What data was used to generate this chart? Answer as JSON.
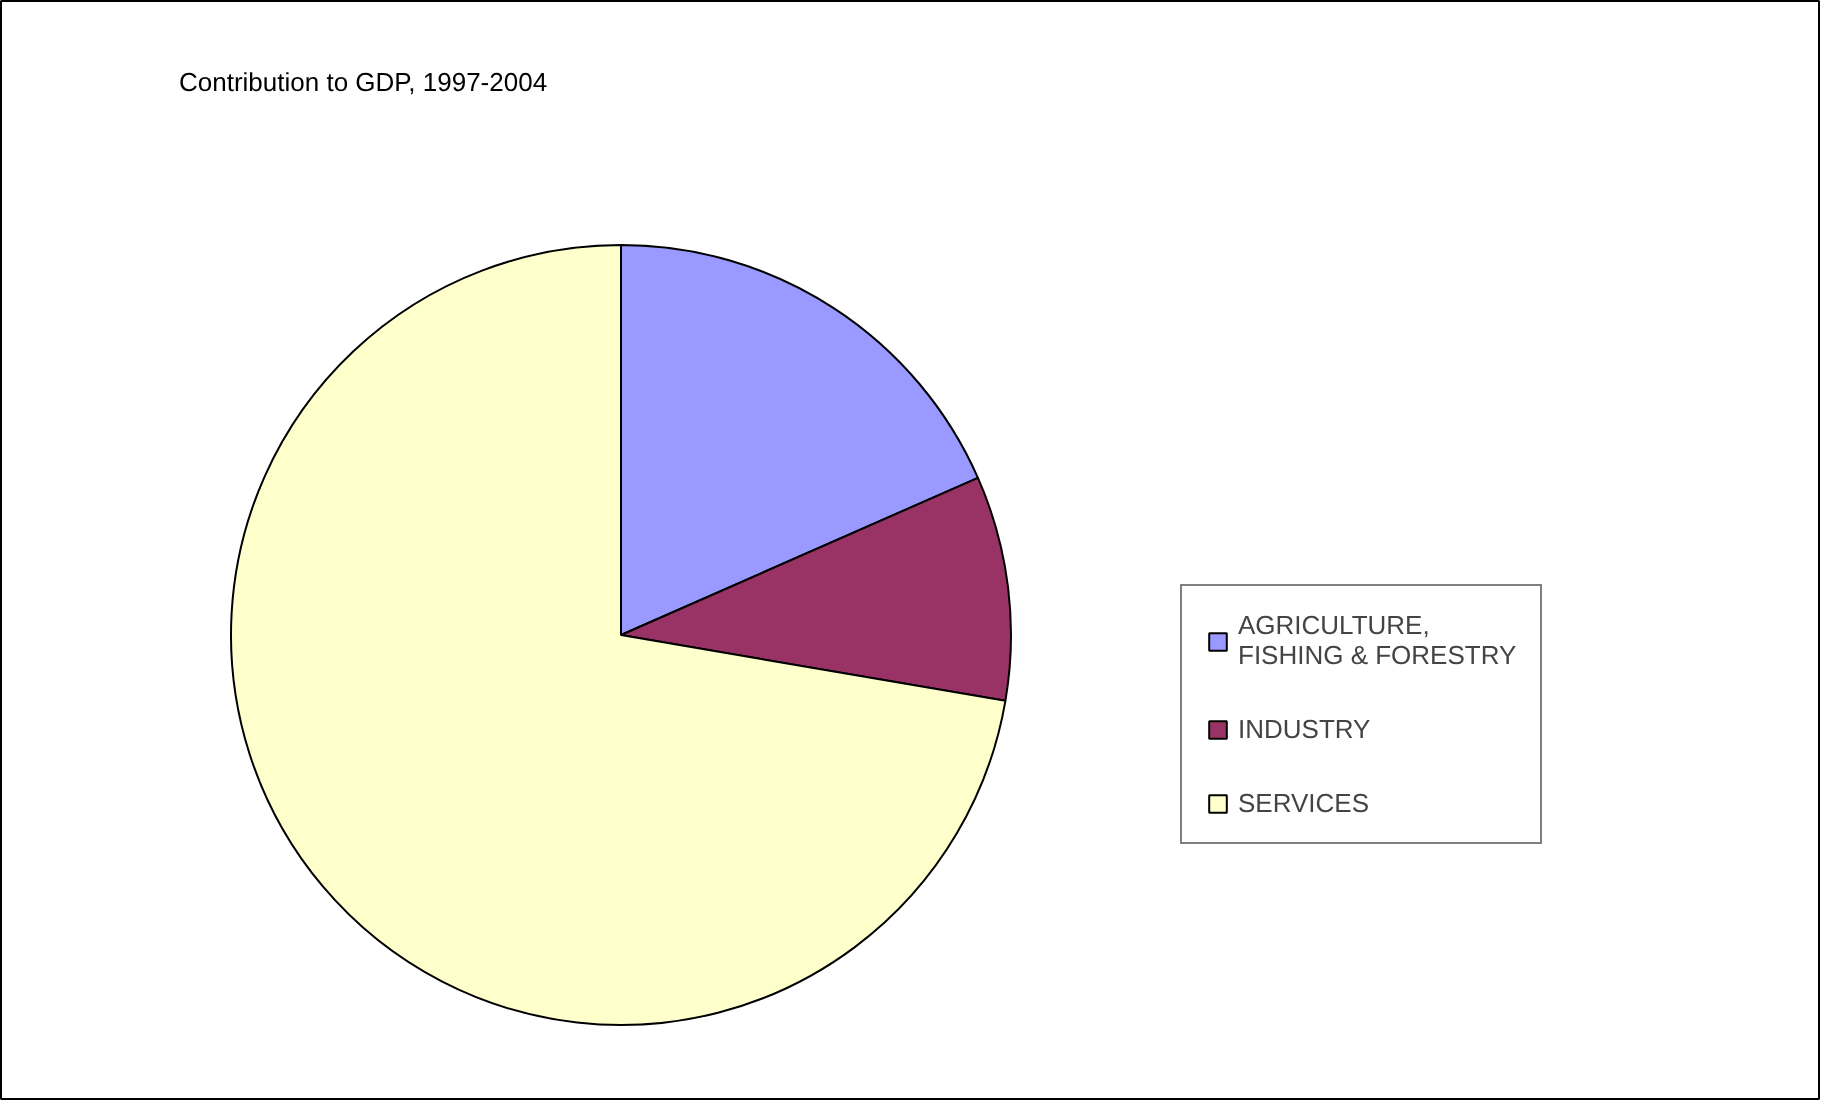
{
  "chart_data": {
    "type": "pie",
    "title": "Contribution to GDP, 1997-2004",
    "categories": [
      "AGRICULTURE, FISHING & FORESTRY",
      "INDUSTRY",
      "SERVICES"
    ],
    "values": [
      18.4,
      9.3,
      72.3
    ],
    "colors": [
      "#9999ff",
      "#993366",
      "#ffffcc"
    ],
    "legend": "right"
  }
}
